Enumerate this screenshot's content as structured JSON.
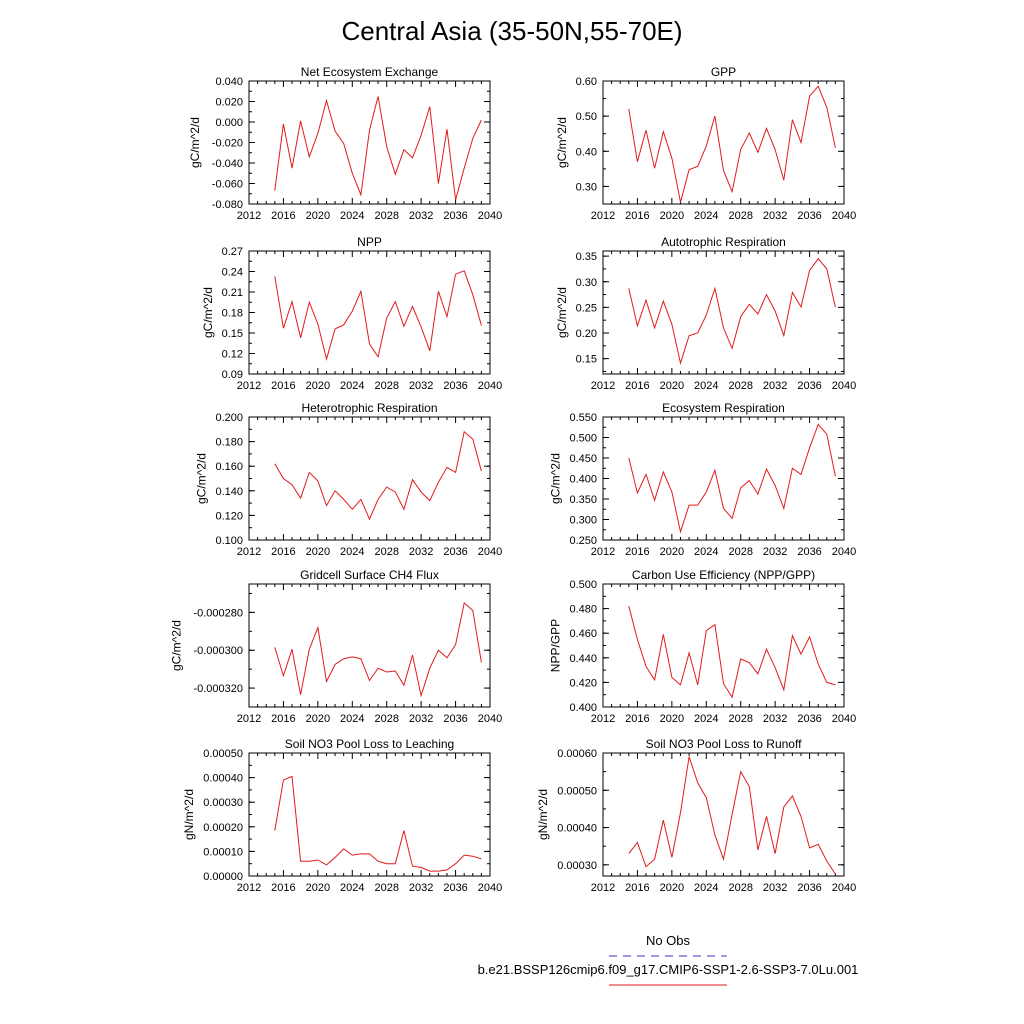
{
  "figure": {
    "title": "Central Asia (35-50N,55-70E)",
    "legend": [
      {
        "label": "No Obs",
        "color": "#3333cc",
        "style": "dashed"
      },
      {
        "label": "b.e21.BSSP126cmip6.f09_g17.CMIP6-SSP1-2.6-SSP3-7.0Lu.001",
        "color": "#e31a1c",
        "style": "solid"
      }
    ]
  },
  "chart_data": [
    {
      "type": "line",
      "title": "Net Ecosystem Exchange",
      "ylabel": "gC/m^2/d",
      "xlim": [
        2012,
        2040
      ],
      "ylim": [
        -0.08,
        0.04
      ],
      "xticks": [
        "2012",
        "2016",
        "2020",
        "2024",
        "2028",
        "2032",
        "2036",
        "2040"
      ],
      "yticks": [
        "-0.080",
        "-0.060",
        "-0.040",
        "-0.020",
        "0.000",
        "0.020",
        "0.040"
      ],
      "x": [
        2015,
        2016,
        2017,
        2018,
        2019,
        2020,
        2021,
        2022,
        2023,
        2024,
        2025,
        2026,
        2027,
        2028,
        2029,
        2030,
        2031,
        2032,
        2033,
        2034,
        2035,
        2036,
        2037,
        2038,
        2039
      ],
      "values": [
        -0.067,
        -0.002,
        -0.045,
        0.001,
        -0.034,
        -0.011,
        0.021,
        -0.009,
        -0.021,
        -0.05,
        -0.071,
        -0.008,
        0.025,
        -0.024,
        -0.051,
        -0.027,
        -0.035,
        -0.013,
        0.015,
        -0.06,
        -0.007,
        -0.076,
        -0.045,
        -0.016,
        0.002
      ],
      "color": "#e31a1c"
    },
    {
      "type": "line",
      "title": "GPP",
      "ylabel": "gC/m^2/d",
      "xlim": [
        2012,
        2040
      ],
      "ylim": [
        0.25,
        0.6
      ],
      "xticks": [
        "2012",
        "2016",
        "2020",
        "2024",
        "2028",
        "2032",
        "2036",
        "2040"
      ],
      "yticks": [
        "0.30",
        "0.40",
        "0.50",
        "0.60"
      ],
      "x": [
        2015,
        2016,
        2017,
        2018,
        2019,
        2020,
        2021,
        2022,
        2023,
        2024,
        2025,
        2026,
        2027,
        2028,
        2029,
        2030,
        2031,
        2032,
        2033,
        2034,
        2035,
        2036,
        2037,
        2038,
        2039
      ],
      "values": [
        0.52,
        0.37,
        0.46,
        0.352,
        0.456,
        0.38,
        0.255,
        0.348,
        0.357,
        0.415,
        0.5,
        0.345,
        0.285,
        0.405,
        0.452,
        0.397,
        0.465,
        0.405,
        0.318,
        0.49,
        0.425,
        0.557,
        0.585,
        0.525,
        0.41
      ],
      "color": "#e31a1c"
    },
    {
      "type": "line",
      "title": "NPP",
      "ylabel": "gC/m^2/d",
      "xlim": [
        2012,
        2040
      ],
      "ylim": [
        0.09,
        0.27
      ],
      "xticks": [
        "2012",
        "2016",
        "2020",
        "2024",
        "2028",
        "2032",
        "2036",
        "2040"
      ],
      "yticks": [
        "0.09",
        "0.12",
        "0.15",
        "0.18",
        "0.21",
        "0.24",
        "0.27"
      ],
      "x": [
        2015,
        2016,
        2017,
        2018,
        2019,
        2020,
        2021,
        2022,
        2023,
        2024,
        2025,
        2026,
        2027,
        2028,
        2029,
        2030,
        2031,
        2032,
        2033,
        2034,
        2035,
        2036,
        2037,
        2038,
        2039
      ],
      "values": [
        0.233,
        0.157,
        0.196,
        0.143,
        0.195,
        0.163,
        0.112,
        0.156,
        0.162,
        0.182,
        0.211,
        0.134,
        0.115,
        0.172,
        0.196,
        0.16,
        0.189,
        0.159,
        0.124,
        0.211,
        0.174,
        0.236,
        0.241,
        0.206,
        0.161
      ],
      "color": "#e31a1c"
    },
    {
      "type": "line",
      "title": "Autotrophic Respiration",
      "ylabel": "gC/m^2/d",
      "xlim": [
        2012,
        2040
      ],
      "ylim": [
        0.12,
        0.36
      ],
      "xticks": [
        "2012",
        "2016",
        "2020",
        "2024",
        "2028",
        "2032",
        "2036",
        "2040"
      ],
      "yticks": [
        "0.15",
        "0.20",
        "0.25",
        "0.30",
        "0.35"
      ],
      "x": [
        2015,
        2016,
        2017,
        2018,
        2019,
        2020,
        2021,
        2022,
        2023,
        2024,
        2025,
        2026,
        2027,
        2028,
        2029,
        2030,
        2031,
        2032,
        2033,
        2034,
        2035,
        2036,
        2037,
        2038,
        2039
      ],
      "values": [
        0.287,
        0.214,
        0.264,
        0.21,
        0.262,
        0.217,
        0.141,
        0.195,
        0.2,
        0.235,
        0.287,
        0.21,
        0.17,
        0.232,
        0.256,
        0.237,
        0.275,
        0.243,
        0.195,
        0.279,
        0.251,
        0.322,
        0.345,
        0.325,
        0.25
      ],
      "color": "#e31a1c"
    },
    {
      "type": "line",
      "title": "Heterotrophic Respiration",
      "ylabel": "gC/m^2/d",
      "xlim": [
        2012,
        2040
      ],
      "ylim": [
        0.1,
        0.2
      ],
      "xticks": [
        "2012",
        "2016",
        "2020",
        "2024",
        "2028",
        "2032",
        "2036",
        "2040"
      ],
      "yticks": [
        "0.100",
        "0.120",
        "0.140",
        "0.160",
        "0.180",
        "0.200"
      ],
      "x": [
        2015,
        2016,
        2017,
        2018,
        2019,
        2020,
        2021,
        2022,
        2023,
        2024,
        2025,
        2026,
        2027,
        2028,
        2029,
        2030,
        2031,
        2032,
        2033,
        2034,
        2035,
        2036,
        2037,
        2038,
        2039
      ],
      "values": [
        0.162,
        0.15,
        0.145,
        0.134,
        0.155,
        0.148,
        0.128,
        0.14,
        0.133,
        0.125,
        0.133,
        0.117,
        0.133,
        0.143,
        0.139,
        0.125,
        0.149,
        0.139,
        0.132,
        0.147,
        0.159,
        0.155,
        0.188,
        0.182,
        0.156
      ],
      "color": "#e31a1c"
    },
    {
      "type": "line",
      "title": "Ecosystem Respiration",
      "ylabel": "gC/m^2/d",
      "xlim": [
        2012,
        2040
      ],
      "ylim": [
        0.25,
        0.55
      ],
      "xticks": [
        "2012",
        "2016",
        "2020",
        "2024",
        "2028",
        "2032",
        "2036",
        "2040"
      ],
      "yticks": [
        "0.250",
        "0.300",
        "0.350",
        "0.400",
        "0.450",
        "0.500",
        "0.550"
      ],
      "x": [
        2015,
        2016,
        2017,
        2018,
        2019,
        2020,
        2021,
        2022,
        2023,
        2024,
        2025,
        2026,
        2027,
        2028,
        2029,
        2030,
        2031,
        2032,
        2033,
        2034,
        2035,
        2036,
        2037,
        2038,
        2039
      ],
      "values": [
        0.45,
        0.365,
        0.41,
        0.347,
        0.416,
        0.367,
        0.27,
        0.335,
        0.335,
        0.367,
        0.42,
        0.327,
        0.303,
        0.377,
        0.395,
        0.362,
        0.423,
        0.383,
        0.327,
        0.425,
        0.41,
        0.475,
        0.532,
        0.508,
        0.405
      ],
      "color": "#e31a1c"
    },
    {
      "type": "line",
      "title": "Gridcell Surface CH4 Flux",
      "ylabel": "gC/m^2/d",
      "xlim": [
        2012,
        2040
      ],
      "ylim": [
        -0.00033,
        -0.000265
      ],
      "xticks": [
        "2012",
        "2016",
        "2020",
        "2024",
        "2028",
        "2032",
        "2036",
        "2040"
      ],
      "yticks": [
        "-0.000320",
        "-0.000300",
        "-0.000280"
      ],
      "x": [
        2015,
        2016,
        2017,
        2018,
        2019,
        2020,
        2021,
        2022,
        2023,
        2024,
        2025,
        2026,
        2027,
        2028,
        2029,
        2030,
        2031,
        2032,
        2033,
        2034,
        2035,
        2036,
        2037,
        2038,
        2039
      ],
      "values": [
        -0.0002985,
        -0.0003135,
        -0.0002995,
        -0.0003235,
        -0.0002995,
        -0.000288,
        -0.0003165,
        -0.0003075,
        -0.0003045,
        -0.0003035,
        -0.0003045,
        -0.000316,
        -0.0003095,
        -0.0003115,
        -0.000311,
        -0.0003185,
        -0.0003025,
        -0.000324,
        -0.0003095,
        -0.0003,
        -0.000304,
        -0.000297,
        -0.000275,
        -0.000279,
        -0.0003065
      ],
      "color": "#e31a1c"
    },
    {
      "type": "line",
      "title": "Carbon Use Efficiency (NPP/GPP)",
      "ylabel": "NPP/GPP",
      "xlim": [
        2012,
        2040
      ],
      "ylim": [
        0.4,
        0.5
      ],
      "xticks": [
        "2012",
        "2016",
        "2020",
        "2024",
        "2028",
        "2032",
        "2036",
        "2040"
      ],
      "yticks": [
        "0.400",
        "0.420",
        "0.440",
        "0.460",
        "0.480",
        "0.500"
      ],
      "x": [
        2015,
        2016,
        2017,
        2018,
        2019,
        2020,
        2021,
        2022,
        2023,
        2024,
        2025,
        2026,
        2027,
        2028,
        2029,
        2030,
        2031,
        2032,
        2033,
        2034,
        2035,
        2036,
        2037,
        2038,
        2039
      ],
      "values": [
        0.482,
        0.455,
        0.433,
        0.422,
        0.459,
        0.424,
        0.418,
        0.444,
        0.418,
        0.462,
        0.467,
        0.419,
        0.408,
        0.439,
        0.436,
        0.427,
        0.447,
        0.432,
        0.414,
        0.458,
        0.443,
        0.457,
        0.435,
        0.42,
        0.418
      ],
      "color": "#e31a1c"
    },
    {
      "type": "line",
      "title": "Soil NO3 Pool Loss to Leaching",
      "ylabel": "gN/m^2/d",
      "xlim": [
        2012,
        2040
      ],
      "ylim": [
        0.0,
        0.0005
      ],
      "xticks": [
        "2012",
        "2016",
        "2020",
        "2024",
        "2028",
        "2032",
        "2036",
        "2040"
      ],
      "yticks": [
        "0.00000",
        "0.00010",
        "0.00020",
        "0.00030",
        "0.00040",
        "0.00050"
      ],
      "x": [
        2015,
        2016,
        2017,
        2018,
        2019,
        2020,
        2021,
        2022,
        2023,
        2024,
        2025,
        2026,
        2027,
        2028,
        2029,
        2030,
        2031,
        2032,
        2033,
        2034,
        2035,
        2036,
        2037,
        2038,
        2039
      ],
      "values": [
        0.000185,
        0.00039,
        0.000405,
        6e-05,
        6e-05,
        6.5e-05,
        4.5e-05,
        7.5e-05,
        0.00011,
        8.5e-05,
        9e-05,
        9e-05,
        6e-05,
        5e-05,
        5e-05,
        0.000185,
        4e-05,
        3.5e-05,
        2e-05,
        2e-05,
        2.5e-05,
        5e-05,
        8.5e-05,
        8e-05,
        7e-05
      ],
      "color": "#e31a1c"
    },
    {
      "type": "line",
      "title": "Soil NO3 Pool Loss to Runoff",
      "ylabel": "gN/m^2/d",
      "xlim": [
        2012,
        2040
      ],
      "ylim": [
        0.00027,
        0.0006
      ],
      "xticks": [
        "2012",
        "2016",
        "2020",
        "2024",
        "2028",
        "2032",
        "2036",
        "2040"
      ],
      "yticks": [
        "0.00030",
        "0.00040",
        "0.00050",
        "0.00060"
      ],
      "x": [
        2015,
        2016,
        2017,
        2018,
        2019,
        2020,
        2021,
        2022,
        2023,
        2024,
        2025,
        2026,
        2027,
        2028,
        2029,
        2030,
        2031,
        2032,
        2033,
        2034,
        2035,
        2036,
        2037,
        2038,
        2039
      ],
      "values": [
        0.00033,
        0.00036,
        0.000295,
        0.000315,
        0.00042,
        0.00032,
        0.00044,
        0.00059,
        0.00052,
        0.00048,
        0.00038,
        0.000315,
        0.000435,
        0.00055,
        0.00051,
        0.00034,
        0.00043,
        0.00033,
        0.000455,
        0.000485,
        0.00043,
        0.000345,
        0.000355,
        0.00031,
        0.000275
      ],
      "color": "#e31a1c"
    }
  ]
}
